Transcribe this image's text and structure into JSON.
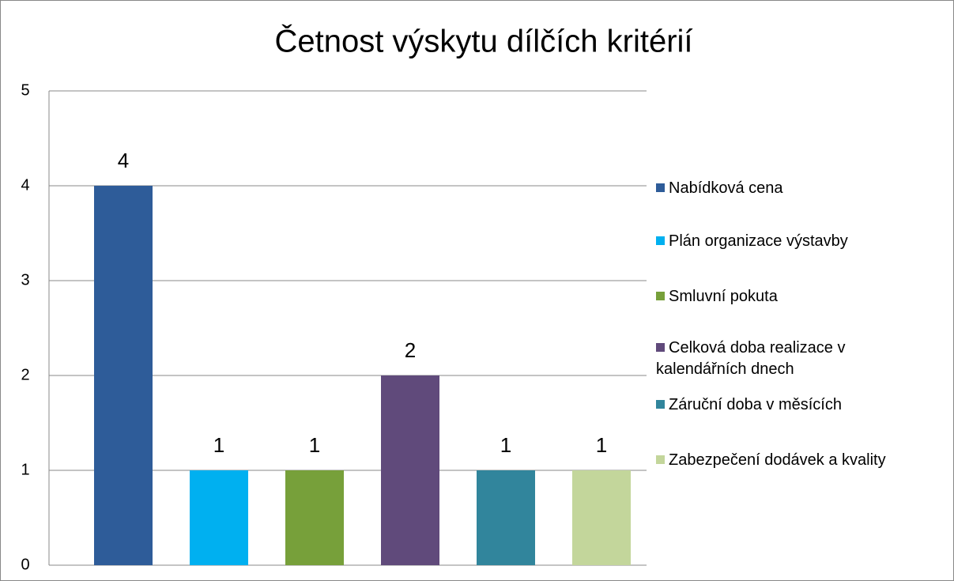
{
  "chart_data": {
    "type": "bar",
    "title": "Četnost výskytu dílčích kritérií",
    "series": [
      {
        "name": "Nabídková cena",
        "color": "#2e5c99",
        "values": [
          4
        ]
      },
      {
        "name": "Plán organizace výstavby",
        "color": "#00b0f0",
        "values": [
          1
        ]
      },
      {
        "name": "Smluvní pokuta",
        "color": "#77a03a",
        "values": [
          1
        ]
      },
      {
        "name": "Celková doba realizace v kalendářních dnech",
        "color": "#604a7b",
        "values": [
          2
        ]
      },
      {
        "name": "Záruční doba v měsících",
        "color": "#31859c",
        "values": [
          1
        ]
      },
      {
        "name": "Zabezpečení dodávek a kvality",
        "color": "#c3d69b",
        "values": [
          1
        ]
      }
    ],
    "ylim": [
      0,
      5
    ],
    "yticks": [
      0,
      1,
      2,
      3,
      4,
      5
    ],
    "grid": true,
    "legend": "right"
  }
}
